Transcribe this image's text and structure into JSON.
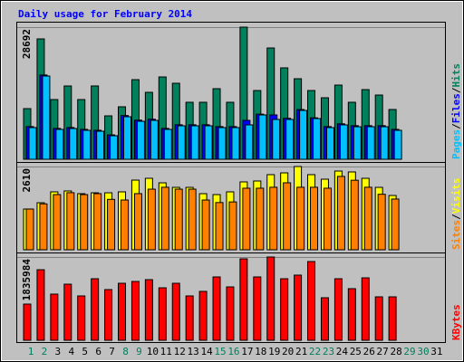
{
  "title": "Daily usage for February 2014",
  "legend_separator": "/",
  "chart_data": [
    {
      "type": "bar",
      "ylim": [
        0,
        28692
      ],
      "yticks": [
        28692
      ],
      "grid": true,
      "series": [
        {
          "name": "Hits",
          "color": "#00805c",
          "values": [
            11000,
            26140,
            12970,
            15920,
            12970,
            15920,
            9430,
            11400,
            17290,
            14540,
            17880,
            16510,
            12380,
            12380,
            15330,
            12380,
            28692,
            14930,
            24170,
            19850,
            17490,
            14930,
            13360,
            16110,
            12380,
            15130,
            13950,
            10810,
            null,
            null,
            null
          ]
        },
        {
          "name": "Files",
          "color": "#0000ff",
          "values": [
            7100,
            18300,
            6700,
            6900,
            6500,
            6300,
            5300,
            9500,
            8500,
            8700,
            6700,
            7500,
            7500,
            7500,
            7100,
            7100,
            8450,
            9800,
            9630,
            8900,
            10800,
            9000,
            7100,
            7700,
            7300,
            7300,
            7300,
            6500,
            null,
            null,
            null
          ]
        },
        {
          "name": "Pages",
          "color": "#00c0ff",
          "values": [
            6880,
            18080,
            6490,
            6680,
            6290,
            6090,
            5110,
            9240,
            8250,
            8450,
            6490,
            7270,
            7270,
            7270,
            6880,
            6880,
            7470,
            9630,
            8650,
            8650,
            10610,
            8840,
            6880,
            7470,
            7070,
            7070,
            7070,
            6290,
            null,
            null,
            null
          ]
        }
      ]
    },
    {
      "type": "bar",
      "ylim": [
        0,
        2610
      ],
      "yticks": [
        2610
      ],
      "grid": true,
      "series": [
        {
          "name": "Visits",
          "color": "#ffff00",
          "values": [
            1277,
            1475,
            1816,
            1844,
            1759,
            1787,
            1787,
            1816,
            2184,
            2241,
            2099,
            1957,
            1957,
            1759,
            1730,
            1816,
            2128,
            2156,
            2355,
            2411,
            2610,
            2355,
            2213,
            2468,
            2440,
            2241,
            1957,
            1702,
            null,
            null,
            null
          ]
        },
        {
          "name": "Sites",
          "color": "#ff8000",
          "values": [
            1277,
            1440,
            1730,
            1790,
            1730,
            1760,
            1580,
            1560,
            1760,
            1900,
            1960,
            1900,
            1900,
            1560,
            1480,
            1500,
            1930,
            1930,
            1960,
            2100,
            1960,
            1960,
            1930,
            2300,
            2180,
            1960,
            1740,
            1590,
            null,
            null,
            null
          ]
        }
      ]
    },
    {
      "type": "bar",
      "ylim": [
        0,
        1835984
      ],
      "yticks": [
        1835984
      ],
      "grid": true,
      "categories": [
        "1",
        "2",
        "3",
        "4",
        "5",
        "6",
        "7",
        "8",
        "9",
        "10",
        "11",
        "12",
        "13",
        "14",
        "15",
        "16",
        "17",
        "18",
        "19",
        "20",
        "21",
        "22",
        "23",
        "24",
        "25",
        "26",
        "27",
        "28",
        "29",
        "30",
        "31"
      ],
      "category_colors": [
        "#00805c",
        "#00805c",
        "#000000",
        "#000000",
        "#000000",
        "#000000",
        "#000000",
        "#00805c",
        "#00805c",
        "#000000",
        "#000000",
        "#000000",
        "#000000",
        "#000000",
        "#00805c",
        "#00805c",
        "#000000",
        "#000000",
        "#000000",
        "#000000",
        "#000000",
        "#00805c",
        "#00805c",
        "#000000",
        "#000000",
        "#000000",
        "#000000",
        "#000000",
        "#00805c",
        "#00805c",
        "#000000"
      ],
      "series": [
        {
          "name": "KBytes",
          "color": "#ff0000",
          "values": [
            798000,
            1556000,
            1018000,
            1237000,
            978000,
            1357000,
            1118000,
            1257000,
            1297000,
            1337000,
            1157000,
            1257000,
            978000,
            1078000,
            1397000,
            1177000,
            1796000,
            1397000,
            1835984,
            1357000,
            1437000,
            1736000,
            938000,
            1357000,
            1138000,
            1377000,
            958000,
            958000,
            null,
            null,
            null
          ]
        }
      ]
    }
  ]
}
